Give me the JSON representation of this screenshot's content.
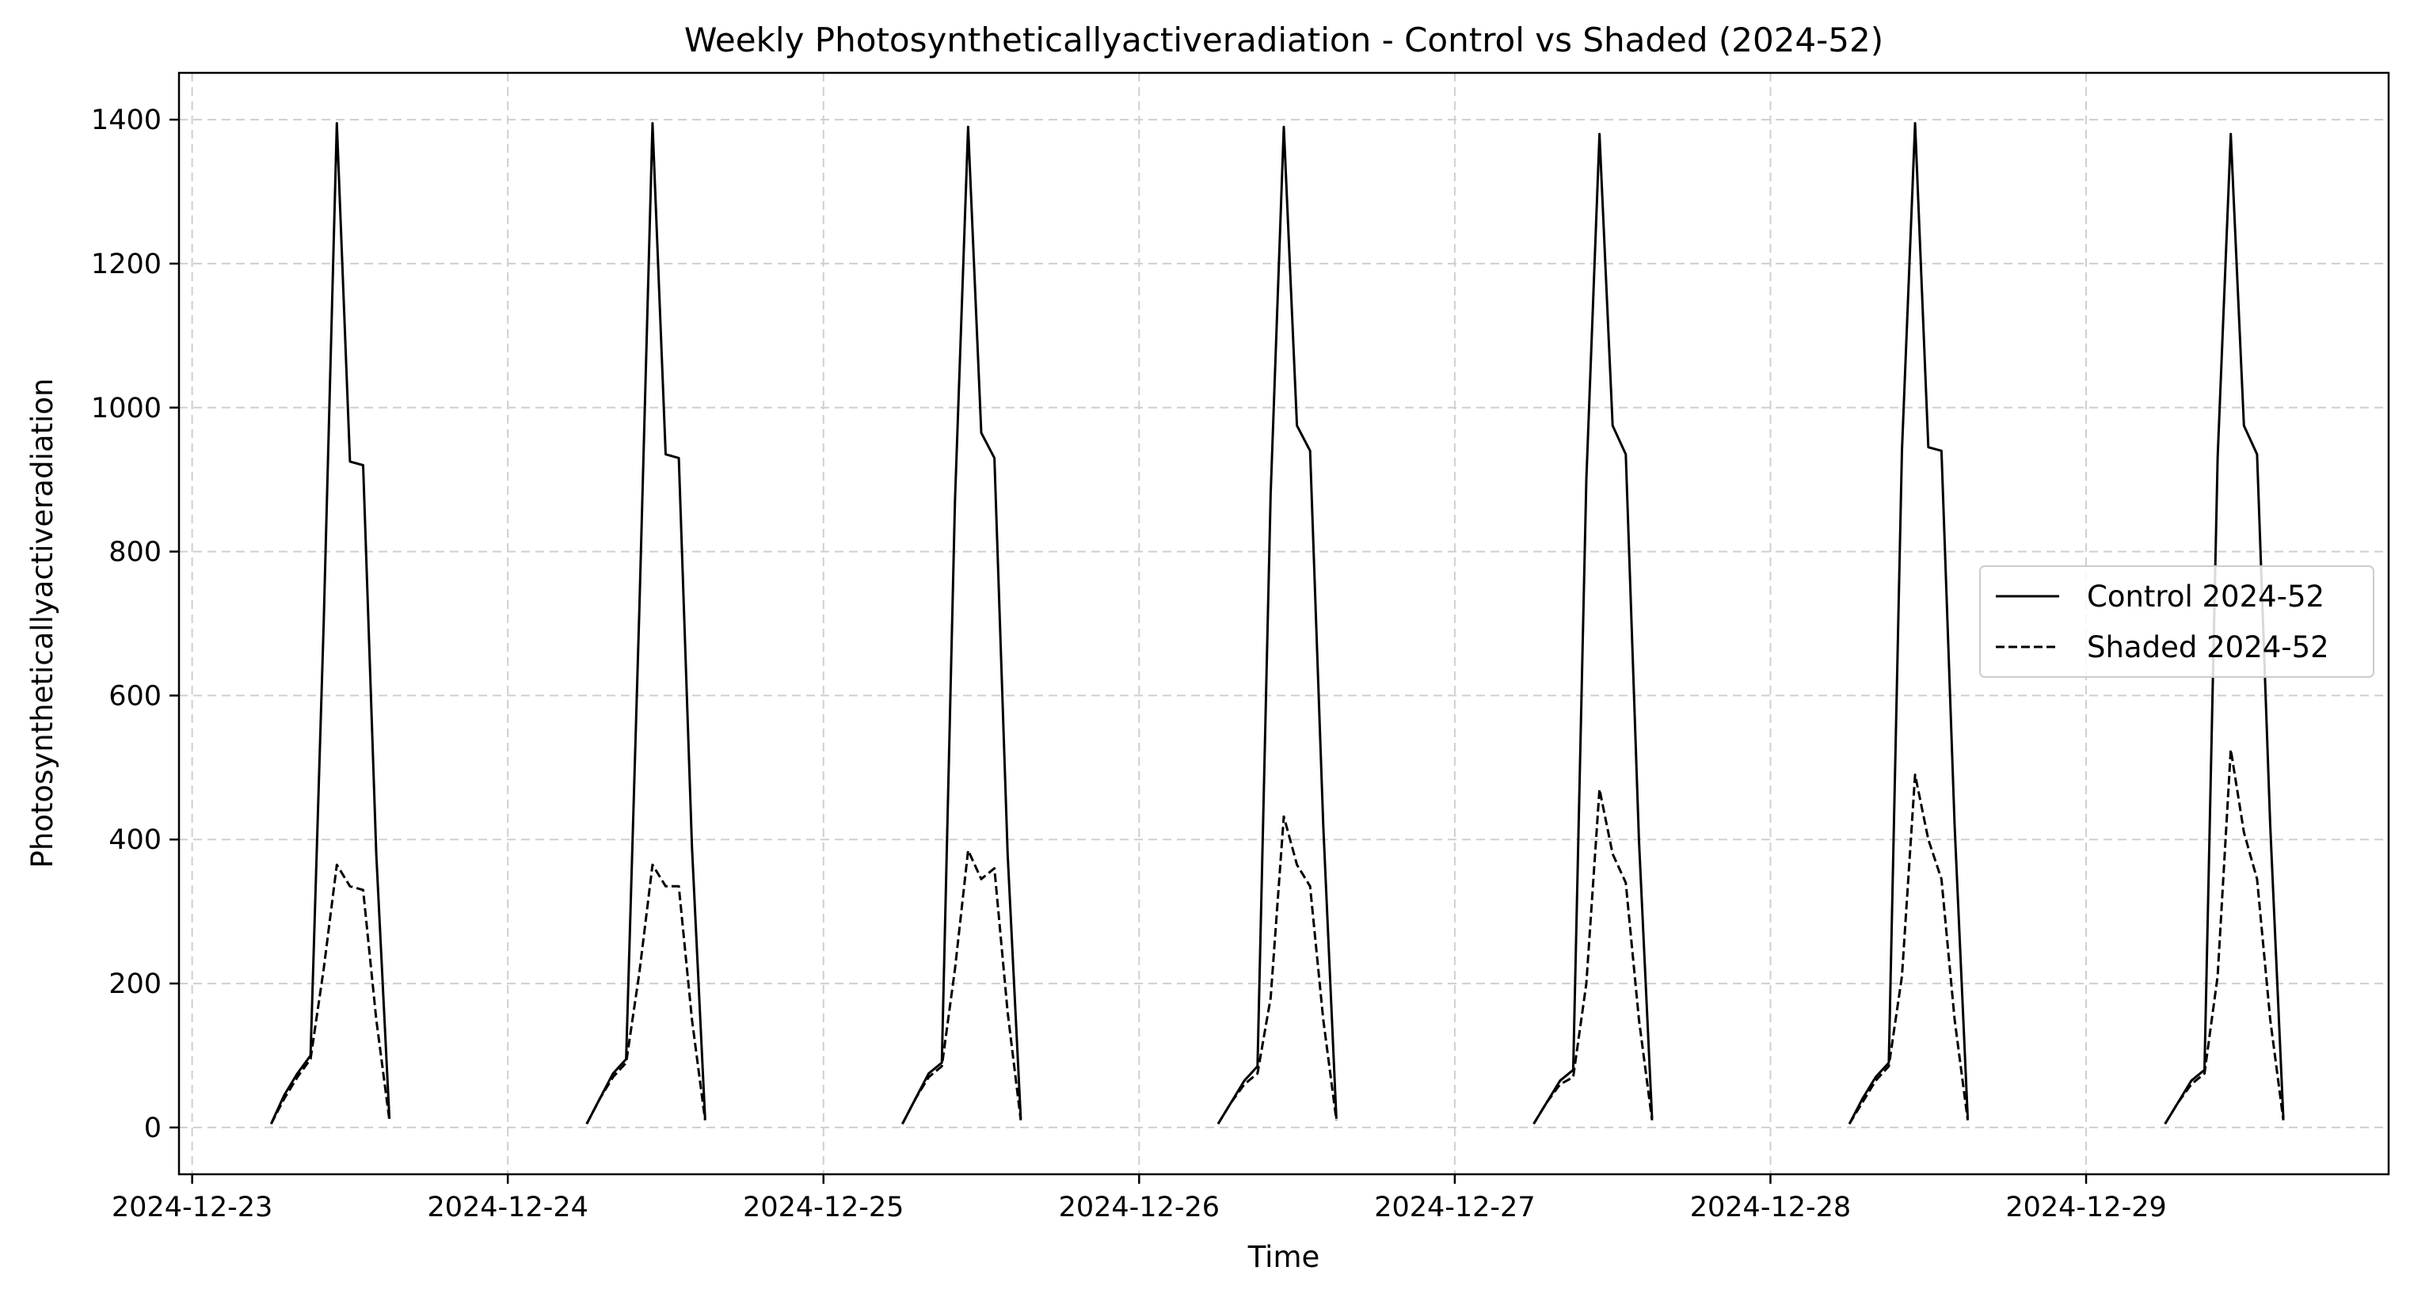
{
  "chart_data": {
    "type": "line",
    "title": "Weekly Photosyntheticallyactiveradiation - Control vs Shaded (2024-52)",
    "xlabel": "Time",
    "ylabel": "Photosyntheticallyactiveradiation",
    "ylim": [
      -65,
      1465
    ],
    "xlim": [
      "2024-12-22T23:00",
      "2024-12-29T23:00"
    ],
    "yticks": [
      0,
      200,
      400,
      600,
      800,
      1000,
      1200,
      1400
    ],
    "xticks": [
      "2024-12-23",
      "2024-12-24",
      "2024-12-25",
      "2024-12-26",
      "2024-12-27",
      "2024-12-28",
      "2024-12-29"
    ],
    "grid": true,
    "legend_position": "center-right",
    "series": [
      {
        "name": "Control 2024-52",
        "style": "solid",
        "color": "#000000",
        "points": [
          [
            "2024-12-23T06:00",
            5
          ],
          [
            "2024-12-23T07:00",
            45
          ],
          [
            "2024-12-23T08:00",
            75
          ],
          [
            "2024-12-23T09:00",
            100
          ],
          [
            "2024-12-23T10:00",
            700
          ],
          [
            "2024-12-23T11:00",
            1395
          ],
          [
            "2024-12-23T12:00",
            925
          ],
          [
            "2024-12-23T13:00",
            920
          ],
          [
            "2024-12-23T14:00",
            380
          ],
          [
            "2024-12-23T15:00",
            12
          ],
          [
            "2024-12-24T06:00",
            5
          ],
          [
            "2024-12-24T07:00",
            40
          ],
          [
            "2024-12-24T08:00",
            75
          ],
          [
            "2024-12-24T09:00",
            95
          ],
          [
            "2024-12-24T10:00",
            720
          ],
          [
            "2024-12-24T11:00",
            1395
          ],
          [
            "2024-12-24T12:00",
            935
          ],
          [
            "2024-12-24T13:00",
            930
          ],
          [
            "2024-12-24T14:00",
            390
          ],
          [
            "2024-12-24T15:00",
            12
          ],
          [
            "2024-12-25T06:00",
            5
          ],
          [
            "2024-12-25T07:00",
            40
          ],
          [
            "2024-12-25T08:00",
            75
          ],
          [
            "2024-12-25T09:00",
            90
          ],
          [
            "2024-12-25T10:00",
            870
          ],
          [
            "2024-12-25T11:00",
            1390
          ],
          [
            "2024-12-25T12:00",
            965
          ],
          [
            "2024-12-25T13:00",
            930
          ],
          [
            "2024-12-25T14:00",
            380
          ],
          [
            "2024-12-25T15:00",
            12
          ],
          [
            "2024-12-26T06:00",
            5
          ],
          [
            "2024-12-26T07:00",
            35
          ],
          [
            "2024-12-26T08:00",
            65
          ],
          [
            "2024-12-26T09:00",
            85
          ],
          [
            "2024-12-26T10:00",
            880
          ],
          [
            "2024-12-26T11:00",
            1390
          ],
          [
            "2024-12-26T12:00",
            975
          ],
          [
            "2024-12-26T13:00",
            940
          ],
          [
            "2024-12-26T14:00",
            420
          ],
          [
            "2024-12-26T15:00",
            12
          ],
          [
            "2024-12-27T06:00",
            5
          ],
          [
            "2024-12-27T07:00",
            35
          ],
          [
            "2024-12-27T08:00",
            65
          ],
          [
            "2024-12-27T09:00",
            80
          ],
          [
            "2024-12-27T10:00",
            900
          ],
          [
            "2024-12-27T11:00",
            1380
          ],
          [
            "2024-12-27T12:00",
            975
          ],
          [
            "2024-12-27T13:00",
            935
          ],
          [
            "2024-12-27T14:00",
            400
          ],
          [
            "2024-12-27T15:00",
            12
          ],
          [
            "2024-12-28T06:00",
            5
          ],
          [
            "2024-12-28T07:00",
            40
          ],
          [
            "2024-12-28T08:00",
            70
          ],
          [
            "2024-12-28T09:00",
            90
          ],
          [
            "2024-12-28T10:00",
            940
          ],
          [
            "2024-12-28T11:00",
            1395
          ],
          [
            "2024-12-28T12:00",
            945
          ],
          [
            "2024-12-28T13:00",
            940
          ],
          [
            "2024-12-28T14:00",
            420
          ],
          [
            "2024-12-28T15:00",
            12
          ],
          [
            "2024-12-29T06:00",
            5
          ],
          [
            "2024-12-29T07:00",
            35
          ],
          [
            "2024-12-29T08:00",
            65
          ],
          [
            "2024-12-29T09:00",
            80
          ],
          [
            "2024-12-29T10:00",
            930
          ],
          [
            "2024-12-29T11:00",
            1380
          ],
          [
            "2024-12-29T12:00",
            975
          ],
          [
            "2024-12-29T13:00",
            935
          ],
          [
            "2024-12-29T14:00",
            420
          ],
          [
            "2024-12-29T15:00",
            12
          ]
        ]
      },
      {
        "name": "Shaded 2024-52",
        "style": "dashed",
        "color": "#000000",
        "points": [
          [
            "2024-12-23T06:00",
            5
          ],
          [
            "2024-12-23T07:00",
            40
          ],
          [
            "2024-12-23T08:00",
            70
          ],
          [
            "2024-12-23T09:00",
            95
          ],
          [
            "2024-12-23T10:00",
            220
          ],
          [
            "2024-12-23T11:00",
            365
          ],
          [
            "2024-12-23T12:00",
            335
          ],
          [
            "2024-12-23T13:00",
            330
          ],
          [
            "2024-12-23T14:00",
            150
          ],
          [
            "2024-12-23T15:00",
            10
          ],
          [
            "2024-12-24T06:00",
            5
          ],
          [
            "2024-12-24T07:00",
            40
          ],
          [
            "2024-12-24T08:00",
            70
          ],
          [
            "2024-12-24T09:00",
            90
          ],
          [
            "2024-12-24T10:00",
            215
          ],
          [
            "2024-12-24T11:00",
            365
          ],
          [
            "2024-12-24T12:00",
            335
          ],
          [
            "2024-12-24T13:00",
            335
          ],
          [
            "2024-12-24T14:00",
            150
          ],
          [
            "2024-12-24T15:00",
            10
          ],
          [
            "2024-12-25T06:00",
            5
          ],
          [
            "2024-12-25T07:00",
            40
          ],
          [
            "2024-12-25T08:00",
            70
          ],
          [
            "2024-12-25T09:00",
            85
          ],
          [
            "2024-12-25T10:00",
            220
          ],
          [
            "2024-12-25T11:00",
            385
          ],
          [
            "2024-12-25T12:00",
            345
          ],
          [
            "2024-12-25T13:00",
            360
          ],
          [
            "2024-12-25T14:00",
            160
          ],
          [
            "2024-12-25T15:00",
            10
          ],
          [
            "2024-12-26T06:00",
            5
          ],
          [
            "2024-12-26T07:00",
            35
          ],
          [
            "2024-12-26T08:00",
            60
          ],
          [
            "2024-12-26T09:00",
            75
          ],
          [
            "2024-12-26T10:00",
            180
          ],
          [
            "2024-12-26T11:00",
            432
          ],
          [
            "2024-12-26T12:00",
            365
          ],
          [
            "2024-12-26T13:00",
            335
          ],
          [
            "2024-12-26T14:00",
            150
          ],
          [
            "2024-12-26T15:00",
            10
          ],
          [
            "2024-12-27T06:00",
            5
          ],
          [
            "2024-12-27T07:00",
            35
          ],
          [
            "2024-12-27T08:00",
            60
          ],
          [
            "2024-12-27T09:00",
            70
          ],
          [
            "2024-12-27T10:00",
            200
          ],
          [
            "2024-12-27T11:00",
            470
          ],
          [
            "2024-12-27T12:00",
            380
          ],
          [
            "2024-12-27T13:00",
            340
          ],
          [
            "2024-12-27T14:00",
            150
          ],
          [
            "2024-12-27T15:00",
            10
          ],
          [
            "2024-12-28T06:00",
            5
          ],
          [
            "2024-12-28T07:00",
            35
          ],
          [
            "2024-12-28T08:00",
            65
          ],
          [
            "2024-12-28T09:00",
            85
          ],
          [
            "2024-12-28T10:00",
            210
          ],
          [
            "2024-12-28T11:00",
            490
          ],
          [
            "2024-12-28T12:00",
            400
          ],
          [
            "2024-12-28T13:00",
            345
          ],
          [
            "2024-12-28T14:00",
            150
          ],
          [
            "2024-12-28T15:00",
            10
          ],
          [
            "2024-12-29T06:00",
            5
          ],
          [
            "2024-12-29T07:00",
            35
          ],
          [
            "2024-12-29T08:00",
            60
          ],
          [
            "2024-12-29T09:00",
            75
          ],
          [
            "2024-12-29T10:00",
            210
          ],
          [
            "2024-12-29T11:00",
            525
          ],
          [
            "2024-12-29T12:00",
            410
          ],
          [
            "2024-12-29T13:00",
            345
          ],
          [
            "2024-12-29T14:00",
            150
          ],
          [
            "2024-12-29T15:00",
            10
          ]
        ]
      }
    ]
  }
}
